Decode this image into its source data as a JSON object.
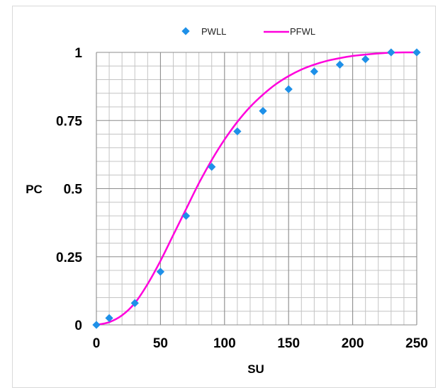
{
  "chart_data": {
    "type": "scatter",
    "xlabel": "SU",
    "ylabel": "PC",
    "xlim": [
      0,
      250
    ],
    "ylim": [
      0,
      1
    ],
    "x_ticks": [
      "0",
      "50",
      "100",
      "150",
      "200",
      "250"
    ],
    "y_ticks": [
      "0",
      "0.25",
      "0.5",
      "0.75",
      "1"
    ],
    "grid": true,
    "legend_position": "top",
    "series": [
      {
        "name": "PWLL",
        "style": "markers",
        "marker": "diamond",
        "color": "#1e90e8",
        "points": [
          [
            0,
            0.0
          ],
          [
            10,
            0.025
          ],
          [
            30,
            0.08
          ],
          [
            50,
            0.195
          ],
          [
            70,
            0.4
          ],
          [
            90,
            0.58
          ],
          [
            110,
            0.71
          ],
          [
            130,
            0.785
          ],
          [
            150,
            0.865
          ],
          [
            170,
            0.93
          ],
          [
            190,
            0.955
          ],
          [
            210,
            0.975
          ],
          [
            230,
            1.0
          ],
          [
            250,
            1.0
          ]
        ]
      },
      {
        "name": "PFWL",
        "style": "line",
        "color": "#ff00dc",
        "points": [
          [
            0,
            0.0
          ],
          [
            10,
            0.01
          ],
          [
            20,
            0.035
          ],
          [
            30,
            0.08
          ],
          [
            40,
            0.15
          ],
          [
            50,
            0.235
          ],
          [
            60,
            0.33
          ],
          [
            70,
            0.425
          ],
          [
            80,
            0.52
          ],
          [
            90,
            0.605
          ],
          [
            100,
            0.68
          ],
          [
            110,
            0.745
          ],
          [
            120,
            0.8
          ],
          [
            130,
            0.845
          ],
          [
            140,
            0.883
          ],
          [
            150,
            0.913
          ],
          [
            160,
            0.937
          ],
          [
            170,
            0.955
          ],
          [
            180,
            0.969
          ],
          [
            190,
            0.979
          ],
          [
            200,
            0.987
          ],
          [
            210,
            0.992
          ],
          [
            220,
            0.996
          ],
          [
            230,
            0.999
          ],
          [
            240,
            1.0
          ],
          [
            250,
            1.0
          ]
        ]
      }
    ]
  }
}
